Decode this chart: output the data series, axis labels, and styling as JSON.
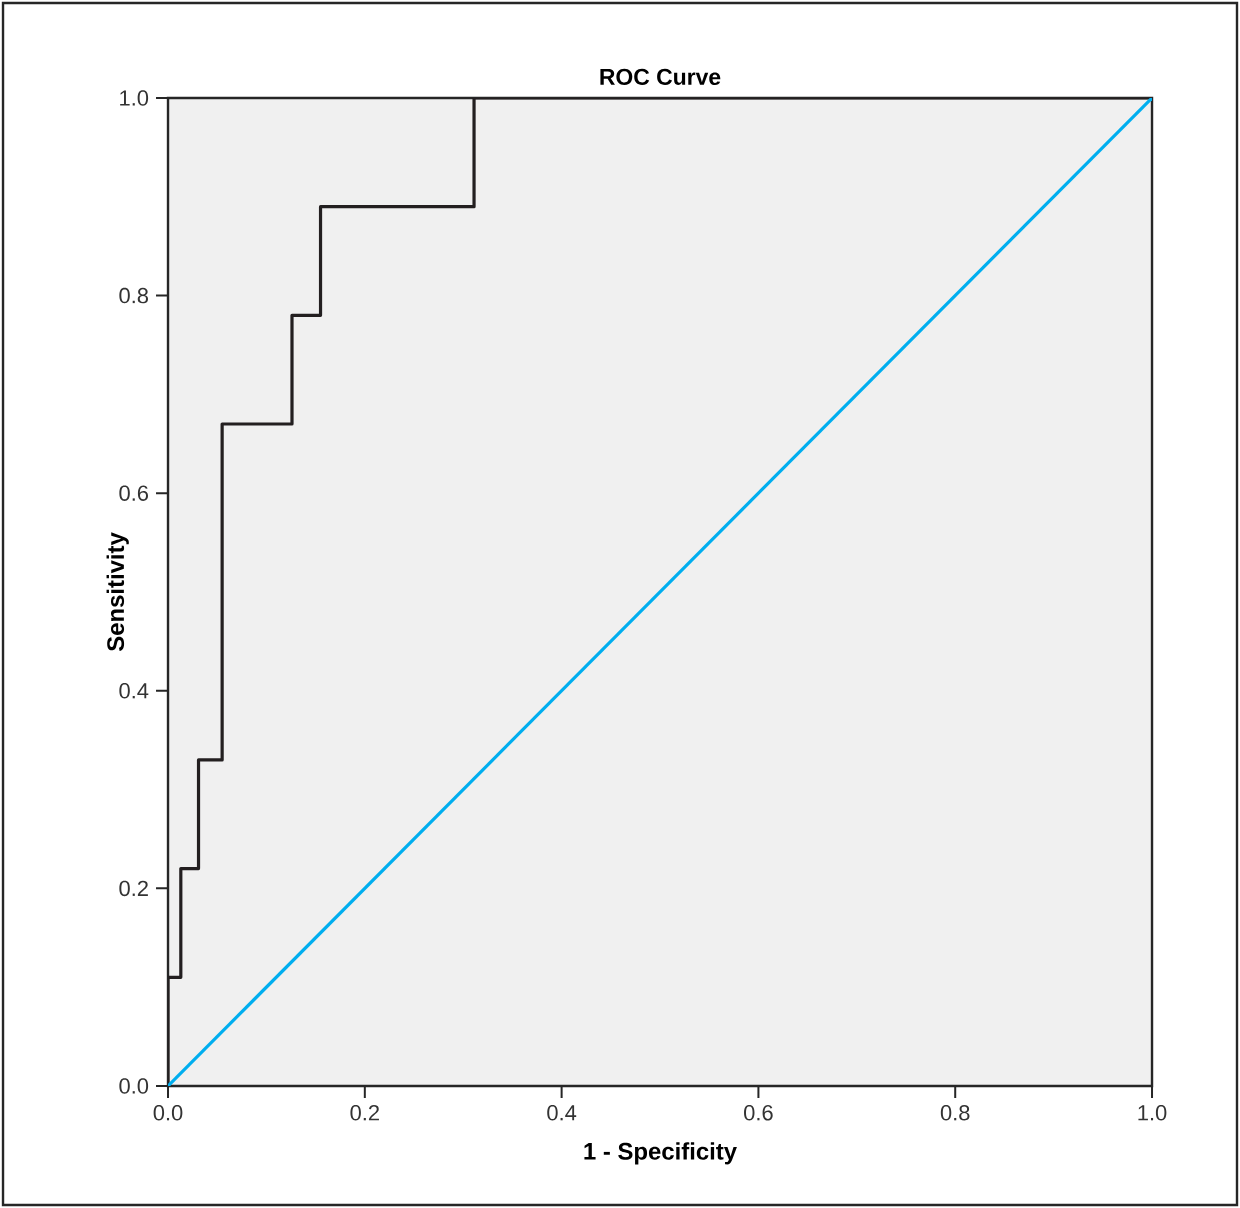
{
  "chart_data": {
    "type": "step",
    "title": "ROC Curve",
    "xlabel": "1 - Specificity",
    "ylabel": "Sensitivity",
    "xlim": [
      0,
      1
    ],
    "ylim": [
      0,
      1
    ],
    "xticks": [
      {
        "value": 0,
        "label": "0.0"
      },
      0.2,
      0.4,
      0.6,
      0.8,
      {
        "value": 1,
        "label": "1.0"
      }
    ],
    "yticks": [
      {
        "value": 0,
        "label": "0.0"
      },
      0.2,
      0.4,
      0.6,
      0.8,
      {
        "value": 1,
        "label": "1.0"
      }
    ],
    "marker": "none",
    "series": [
      {
        "color": "#231f20",
        "x": [
          0,
          0,
          0.013,
          0.013,
          0.031,
          0.031,
          0.055,
          0.055,
          0.126,
          0.126,
          0.155,
          0.155,
          0.311,
          0.311,
          1
        ],
        "values": [
          0,
          0.11,
          0.11,
          0.22,
          0.22,
          0.33,
          0.33,
          0.67,
          0.67,
          0.78,
          0.78,
          0.89,
          0.89,
          1,
          1
        ]
      },
      {
        "type": "line",
        "color": "#00aeef",
        "x": [
          0,
          1
        ],
        "values": [
          0,
          1
        ]
      }
    ]
  }
}
